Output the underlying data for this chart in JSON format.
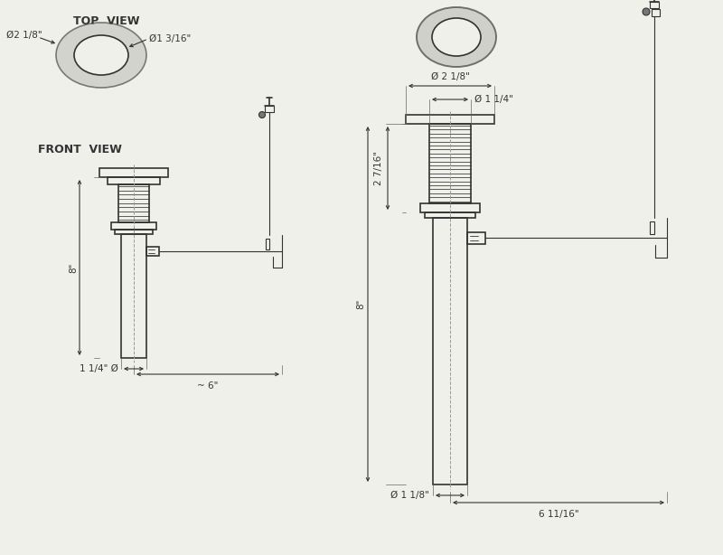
{
  "bg_color": "#f0f0eb",
  "line_color": "#333333",
  "dim_color": "#333333",
  "lw": 1.2,
  "lw_thin": 0.8,
  "labels": {
    "top_view": "TOP  VIEW",
    "front_view": "FRONT  VIEW",
    "outer_dia": "Ø2 1/8\"",
    "inner_dia": "Ø1 3/16\"",
    "dim_8": "8\"",
    "dim_6": "~ 6\"",
    "dim_1_14_dia": "1 1/4\" Ø",
    "dim_2_18": "Ø 2 1/8\"",
    "dim_1_14": "Ø 1 1/4\"",
    "dim_2_7_16": "2 7/16\"",
    "dim_8_right": "8\"",
    "dim_6_11_16": "6 11/16\"",
    "dim_1_18": "Ø 1 1/8\""
  }
}
